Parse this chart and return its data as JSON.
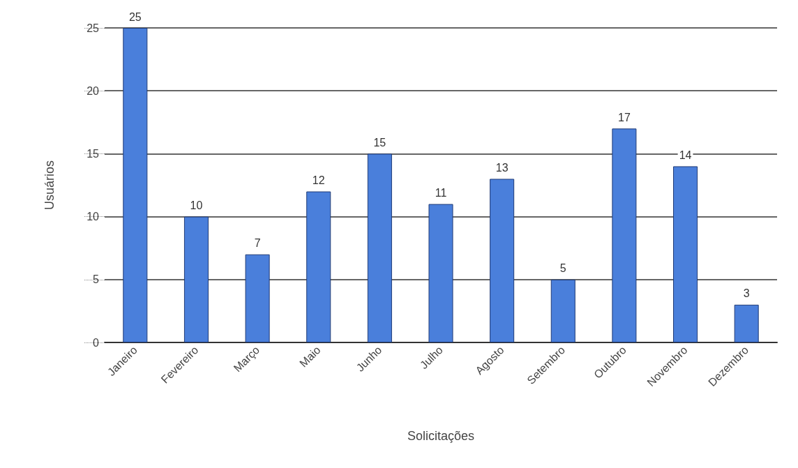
{
  "chart_data": {
    "type": "bar",
    "xlabel": "Solicitações",
    "ylabel": "Usuários",
    "categories": [
      "Janeiro",
      "Fevereiro",
      "Março",
      "Maio",
      "Junho",
      "Julho",
      "Agosto",
      "Setembro",
      "Outubro",
      "Novembro",
      "Dezembro"
    ],
    "values": [
      25,
      10,
      7,
      12,
      15,
      11,
      13,
      5,
      17,
      14,
      3
    ],
    "color": "#4a7fdb",
    "ylim": [
      0,
      25
    ],
    "yticks": [
      0,
      5,
      10,
      15,
      20,
      25
    ],
    "grid": "y",
    "data_labels": true
  }
}
